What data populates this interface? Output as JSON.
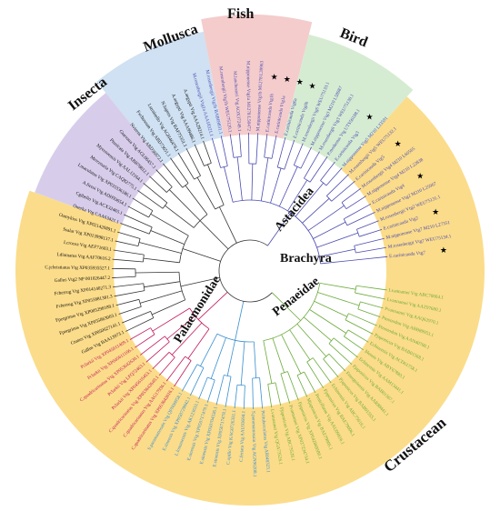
{
  "figure": {
    "group_labels": {
      "insecta": "Insecta",
      "mollusca": "Mollusca",
      "fish": "Fish",
      "bird": "Bird",
      "astacidea": "Astacidea",
      "brachyra": "Brachyra",
      "penaeidae": "Penaeidae",
      "palaemonidae": "Palaemonidae",
      "crustacean": "Crustacean"
    },
    "colors": {
      "insecta": "#d7cdeb",
      "mollusca": "#cfe1f2",
      "fish": "#f4cccc",
      "bird": "#d6ecd2",
      "crustacean": "#fbdc8a",
      "astacidea_branch": "#c2185b",
      "brachyra_branch": "#3a8fd0",
      "penaeidae_branch": "#6aaa3a",
      "palaemonidae_branch": "#4b4bb0",
      "outgroup_branch": "#333333",
      "star": "#000000"
    },
    "leaves": [
      {
        "text": "Lvannamei Vtg ABC70664.1",
        "grp": "pen"
      },
      {
        "text": "Lvannamei Vtg AAZ97600.1",
        "grp": "pen"
      },
      {
        "text": "Pvannamei Vtg AAQ62970.1",
        "grp": "pen"
      },
      {
        "text": "Pmonodon Vtg ABB89953.1",
        "grp": "pen"
      },
      {
        "text": "Pmonodon Vtg AAN40700.1",
        "grp": "pen"
      },
      {
        "text": "Pjaponicus Vtg BAB01568.1",
        "grp": "pen"
      },
      {
        "text": "Echinensis Vtg ACD61758.1",
        "grp": "pen"
      },
      {
        "text": "Mensis Vtg ABY67883.1",
        "grp": "pen"
      },
      {
        "text": "Echinensis Vtg AAM13441.1",
        "grp": "pen"
      },
      {
        "text": "Pjaponicus Vtg BAB01567.1",
        "grp": "pen"
      },
      {
        "text": "Fmerguiensis Vtg AAR88441.1",
        "grp": "pen"
      },
      {
        "text": "Pjaponicus Vtg BAB01555.1",
        "grp": "pen"
      },
      {
        "text": "Echinensis Vtg ABC75616.1",
        "grp": "pen"
      },
      {
        "text": "Pjaponicus Vtg BAE79006.1",
        "grp": "pen"
      },
      {
        "text": "Penicillatus Vtg AAU09816.1",
        "grp": "pen"
      },
      {
        "text": "Mjaponicus Vtg BAE79005.1",
        "grp": "pen"
      },
      {
        "text": "Pjaponicus Vtg XP042869580.1",
        "grp": "pen"
      },
      {
        "text": "Pvannamei Vtg XP027234734.1",
        "grp": "pen"
      },
      {
        "text": "Pjaponicus Vtg ABC75526.1",
        "grp": "pen"
      },
      {
        "text": "Lvannamei Vtg QGA73526.1",
        "grp": "pen"
      },
      {
        "text": "Ptrituberculatus Vtg ABI48323.1",
        "grp": "bra"
      },
      {
        "text": "S.paramamosain Vtg AGN96208.1",
        "grp": "bra"
      },
      {
        "text": "C.feriata Vtg AAU93694.1",
        "grp": "bra"
      },
      {
        "text": "C.opilio Vtg KAG0726331.1",
        "grp": "bra"
      },
      {
        "text": "E.sinensis Vtg XP050717478.1",
        "grp": "bra"
      },
      {
        "text": "E.sinensis Vtg XP050704536.1",
        "grp": "bra"
      },
      {
        "text": "E.sinensis Vtg XP050717479.1",
        "grp": "bra"
      },
      {
        "text": "L.lomanensis Vtg AK123633.1",
        "grp": "bra"
      },
      {
        "text": "E.sinensis Vtg XP050729942.1",
        "grp": "bra"
      },
      {
        "text": "S.paramamosain Vtg QPN06958.1",
        "grp": "bra"
      },
      {
        "text": "C.quadricarinatus Vtg XP053642616.1",
        "grp": "ast"
      },
      {
        "text": "C.quadricarinatus Vtg AAG17936.1",
        "grp": "ast"
      },
      {
        "text": "C.quadricarinatus Vtg XP053642649.1",
        "grp": "ast"
      },
      {
        "text": "Pclarkii Vtg XP045616453.1",
        "grp": "ast"
      },
      {
        "text": "Pclarkii Vtg LFQ72463.1",
        "grp": "ast"
      },
      {
        "text": "C.quadricarinatus Vtg XP053642630.1",
        "grp": "ast"
      },
      {
        "text": "Pclarkii Vtg XP045611166.1",
        "grp": "ast"
      },
      {
        "text": "Pclarkii Vtg XP045611409.1",
        "grp": "ast"
      },
      {
        "text": "Gallus Vtg BAA13973.1",
        "grp": "bir"
      },
      {
        "text": "Cnatus Vtg XP050627141.1",
        "grp": "bir"
      },
      {
        "text": "Fpergrinus Vtg XP055863003.1",
        "grp": "bir"
      },
      {
        "text": "Fpergrinus Vtg XP005298188.1",
        "grp": "bir"
      },
      {
        "text": "Fcherrug Vtg XP055881381.3",
        "grp": "bir"
      },
      {
        "text": "Fcherrug Vtg XP014140271.3",
        "grp": "bir"
      },
      {
        "text": "Gallus Vtg2 NP 001026447.2",
        "grp": "bir"
      },
      {
        "text": "C.jchristiatus Vtg XP035935527.1",
        "grp": "bir"
      },
      {
        "text": "Ldiamatus Vtg AAF70616.2",
        "grp": "fis"
      },
      {
        "text": "Lcrocea Vtg AEF71603.1",
        "grp": "fis"
      },
      {
        "text": "Ssalar Vtg XP013998137.1",
        "grp": "fis"
      },
      {
        "text": "Oamykiss Vtg XP021420891.1",
        "grp": "fis"
      },
      {
        "text": "Onerka Vtg CAA63421.1",
        "grp": "fis"
      },
      {
        "text": "Cgibelio Vtg ACX32465.1",
        "grp": "fis"
      },
      {
        "text": "A.fieroi Vtg ADH93654.1",
        "grp": "fis"
      },
      {
        "text": "Lmaculatus Vtg XP035336186.1",
        "grp": "fis"
      },
      {
        "text": "Mercenaria Vtg CAQ82775.1",
        "grp": "mol"
      },
      {
        "text": "Myessoensis Vtg AAL12164.1",
        "grp": "mol"
      },
      {
        "text": "Ptunicata Vtg ABB78812.1",
        "grp": "mol"
      },
      {
        "text": "Gtarvaua Vtg AGL06457.1",
        "grp": "mol"
      },
      {
        "text": "Nvirens Vtg ABD36872.1",
        "grp": "mol"
      },
      {
        "text": "Fxchuwum Vtg ABD73651.1",
        "grp": "mol"
      },
      {
        "text": "Lstrainello Vtg AGH46478.1",
        "grp": "ins"
      },
      {
        "text": "N.lugens Vtg BAF75351.1",
        "grp": "ins"
      },
      {
        "text": "A.aegypti Vtg AAA99486.1",
        "grp": "ins"
      },
      {
        "text": "A.aegypti Vtg AAA28214.1",
        "grp": "ins"
      },
      {
        "text": "M.rosenbergii Vtg1a AAA18321.1",
        "grp": "pal"
      },
      {
        "text": "M.rosenbergii Vtg1b BAB69831.1",
        "grp": "pal"
      },
      {
        "text": "M.rosenbergii Vtg1b WEU75120.1",
        "grp": "pal"
      },
      {
        "text": "M.lanchesteri Vtg AOX37249.1",
        "grp": "pal"
      },
      {
        "text": "M.nipponense Vtg1a M1278 L50472",
        "grp": "pal"
      },
      {
        "text": "M.nipponense Vtg1b M1278 L39963",
        "grp": "pal"
      },
      {
        "text": "E.carinicauda Vtg1b",
        "grp": "pal",
        "star": true
      },
      {
        "text": "E.carinicauda Vtg1a",
        "grp": "pal",
        "star": true
      },
      {
        "text": "E.carinicauda Vtg6a",
        "grp": "pal",
        "star": true
      },
      {
        "text": "E.carinicauda Vtg6b",
        "grp": "pal",
        "star": true
      },
      {
        "text": "M.rosenbergii Vtg6 WEU75133.1",
        "grp": "pal"
      },
      {
        "text": "M.nipponense Vtg3 M210 L58987",
        "grp": "pal"
      },
      {
        "text": "M.rosenbergii Vtg3 WEU75130.1",
        "grp": "pal"
      },
      {
        "text": "P.modestus Vtg UTS56188.1",
        "grp": "pal"
      },
      {
        "text": "E.carinicauda Vtg3",
        "grp": "pal",
        "star": true
      },
      {
        "text": "M.nipponense Vtg5 M210 L33591",
        "grp": "pal"
      },
      {
        "text": "M.rosenbergii Vtg5 WEU75132.1",
        "grp": "pal"
      },
      {
        "text": "E.carinicauda Vtg5",
        "grp": "pal",
        "star": true
      },
      {
        "text": "M.rosenbergii Vtg4 M210 L60565",
        "grp": "pal"
      },
      {
        "text": "M.nipponense Vtg4 M210 L22838",
        "grp": "pal"
      },
      {
        "text": "E.carinicauda Vtg4",
        "grp": "pal",
        "star": true
      },
      {
        "text": "M.nipponense Vtg2 M210 L25967",
        "grp": "pal"
      },
      {
        "text": "M.rosenbergii Vtg2 WEU75131.1",
        "grp": "pal"
      },
      {
        "text": "E.carinicauda Vtg2",
        "grp": "pal",
        "star": true
      },
      {
        "text": "M.nipponense Vtg7 M210 L27351",
        "grp": "pal"
      },
      {
        "text": "M.rosenbergii Vtg7 WEU75134.1",
        "grp": "pal"
      },
      {
        "text": "E.carinicauda Vtg7",
        "grp": "pal",
        "star": true
      }
    ]
  }
}
